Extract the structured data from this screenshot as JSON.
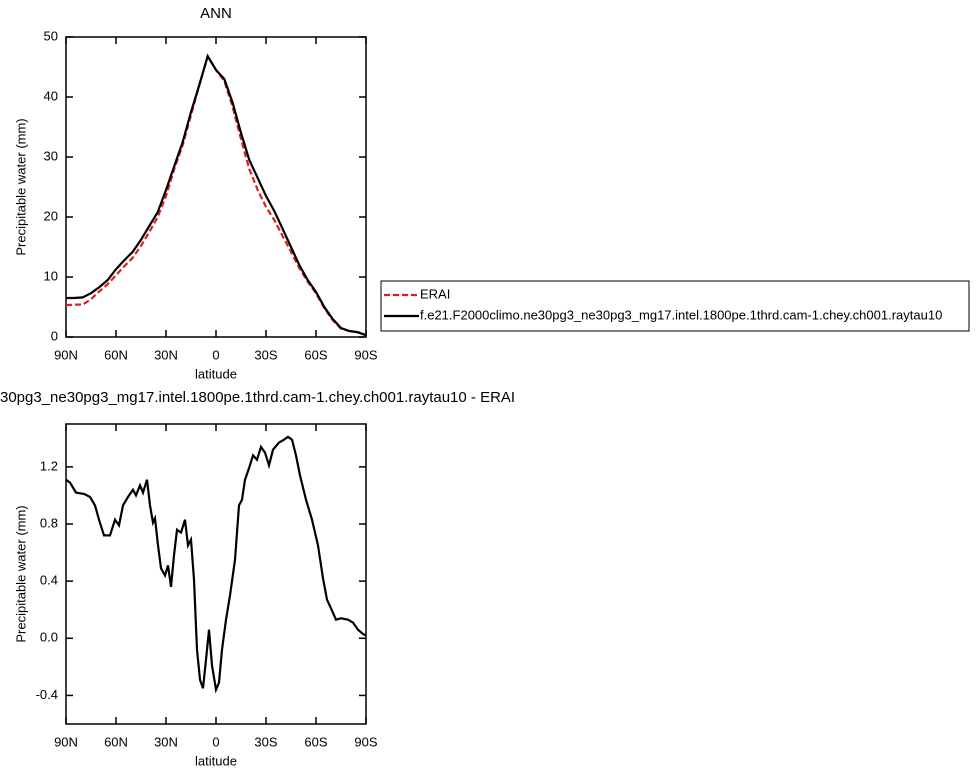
{
  "chart_data": [
    {
      "type": "line",
      "title": "ANN",
      "xlabel": "latitude",
      "ylabel": "Precipitable water (mm)",
      "x": [
        90,
        85,
        80,
        75,
        70,
        65,
        60,
        55,
        50,
        45,
        40,
        35,
        30,
        25,
        20,
        15,
        10,
        5,
        0,
        -5,
        -10,
        -15,
        -20,
        -25,
        -30,
        -35,
        -40,
        -45,
        -50,
        -55,
        -60,
        -65,
        -70,
        -75,
        -80,
        -85,
        -90
      ],
      "series": [
        {
          "name": "ERAI",
          "color": "#e41a1c",
          "linestyle": "dashed",
          "values": [
            5.3,
            5.4,
            5.4,
            6.3,
            7.6,
            8.8,
            10.3,
            11.8,
            13.2,
            15.2,
            17.5,
            20,
            23.5,
            28,
            32,
            37,
            42,
            46.8,
            44.5,
            42.7,
            38.3,
            33,
            28,
            24.5,
            21.7,
            19.5,
            16.8,
            14.2,
            11.5,
            9.2,
            7.3,
            4.8,
            2.8,
            1.4,
            1.0,
            0.8,
            0.3
          ]
        },
        {
          "name": "f.e21.F2000climo.ne30pg3_ne30pg3_mg17.intel.1800pe.1thrd.cam-1.chey.ch001.raytau10",
          "color": "#000000",
          "linestyle": "solid",
          "values": [
            6.5,
            6.5,
            6.6,
            7.3,
            8.3,
            9.5,
            11.3,
            12.8,
            14.2,
            16.2,
            18.5,
            20.8,
            24.5,
            28.5,
            32.5,
            37.5,
            42,
            46.8,
            44.5,
            43,
            39,
            34,
            29.5,
            26.5,
            23.5,
            21,
            18,
            15,
            12,
            9.5,
            7.5,
            5,
            3,
            1.5,
            1.0,
            0.8,
            0.3
          ]
        }
      ],
      "xlim": [
        90,
        -90
      ],
      "xticks": [
        {
          "value": 90,
          "label": "90N"
        },
        {
          "value": 60,
          "label": "60N"
        },
        {
          "value": 30,
          "label": "30N"
        },
        0,
        {
          "value": -30,
          "label": "30S"
        },
        {
          "value": -60,
          "label": "60S"
        },
        {
          "value": -90,
          "label": "90S"
        }
      ],
      "ylim": [
        0,
        50
      ],
      "yticks": [
        0,
        10,
        20,
        30,
        40,
        50
      ],
      "legend": "right"
    },
    {
      "type": "line",
      "title": "30pg3_ne30pg3_mg17.intel.1800pe.1thrd.cam-1.chey.ch001.raytau10 - ERAI",
      "xlabel": "latitude",
      "ylabel": "Precipitable water (mm)",
      "x": [
        90,
        87.6,
        84,
        79,
        75.6,
        72.6,
        70.2,
        67.2,
        63.6,
        60.6,
        58.2,
        55.8,
        52.8,
        49.8,
        48,
        45.6,
        43.8,
        41.4,
        39.6,
        37.8,
        36.6,
        34.8,
        33,
        30.6,
        28.8,
        27,
        25.2,
        23.4,
        21,
        18.6,
        16.8,
        15,
        13.2,
        11.4,
        9.6,
        7.8,
        6,
        4.2,
        2.4,
        0,
        -1.8,
        -3.6,
        -6,
        -8.4,
        -11.4,
        -13.8,
        -15.6,
        -17.4,
        -19.8,
        -22.2,
        -24.6,
        -27,
        -29.4,
        -31.8,
        -34.2,
        -37.8,
        -40.8,
        -43.2,
        -45.6,
        -48,
        -50.4,
        -54,
        -57.6,
        -61.2,
        -64.2,
        -66.6,
        -69,
        -72,
        -75,
        -79.2,
        -82.2,
        -85.2,
        -88.2,
        -90
      ],
      "series": [
        {
          "name": null,
          "color": "#000000",
          "linestyle": "solid",
          "values": [
            1.11,
            1.09,
            1.02,
            1.01,
            0.99,
            0.93,
            0.83,
            0.72,
            0.72,
            0.83,
            0.79,
            0.93,
            0.99,
            1.04,
            1.0,
            1.07,
            1.02,
            1.11,
            0.93,
            0.81,
            0.84,
            0.65,
            0.49,
            0.44,
            0.51,
            0.36,
            0.58,
            0.76,
            0.74,
            0.83,
            0.65,
            0.69,
            0.41,
            -0.08,
            -0.29,
            -0.35,
            -0.15,
            0.06,
            -0.19,
            -0.36,
            -0.31,
            -0.08,
            0.13,
            0.3,
            0.55,
            0.93,
            0.97,
            1.11,
            1.19,
            1.28,
            1.25,
            1.34,
            1.3,
            1.21,
            1.32,
            1.37,
            1.39,
            1.41,
            1.39,
            1.28,
            1.14,
            0.97,
            0.83,
            0.65,
            0.42,
            0.27,
            0.21,
            0.13,
            0.14,
            0.13,
            0.11,
            0.06,
            0.03,
            0.02
          ]
        }
      ],
      "xlim": [
        90,
        -90
      ],
      "xticks": [
        {
          "value": 90,
          "label": "90N"
        },
        {
          "value": 60,
          "label": "60N"
        },
        {
          "value": 30,
          "label": "30N"
        },
        0,
        {
          "value": -30,
          "label": "30S"
        },
        {
          "value": -60,
          "label": "60S"
        },
        {
          "value": -90,
          "label": "90S"
        }
      ],
      "ylim": [
        -0.6,
        1.5
      ],
      "yticks": [
        -0.4,
        {
          "value": 0,
          "label": "0.0"
        },
        0.4,
        0.8,
        1.2
      ]
    }
  ]
}
